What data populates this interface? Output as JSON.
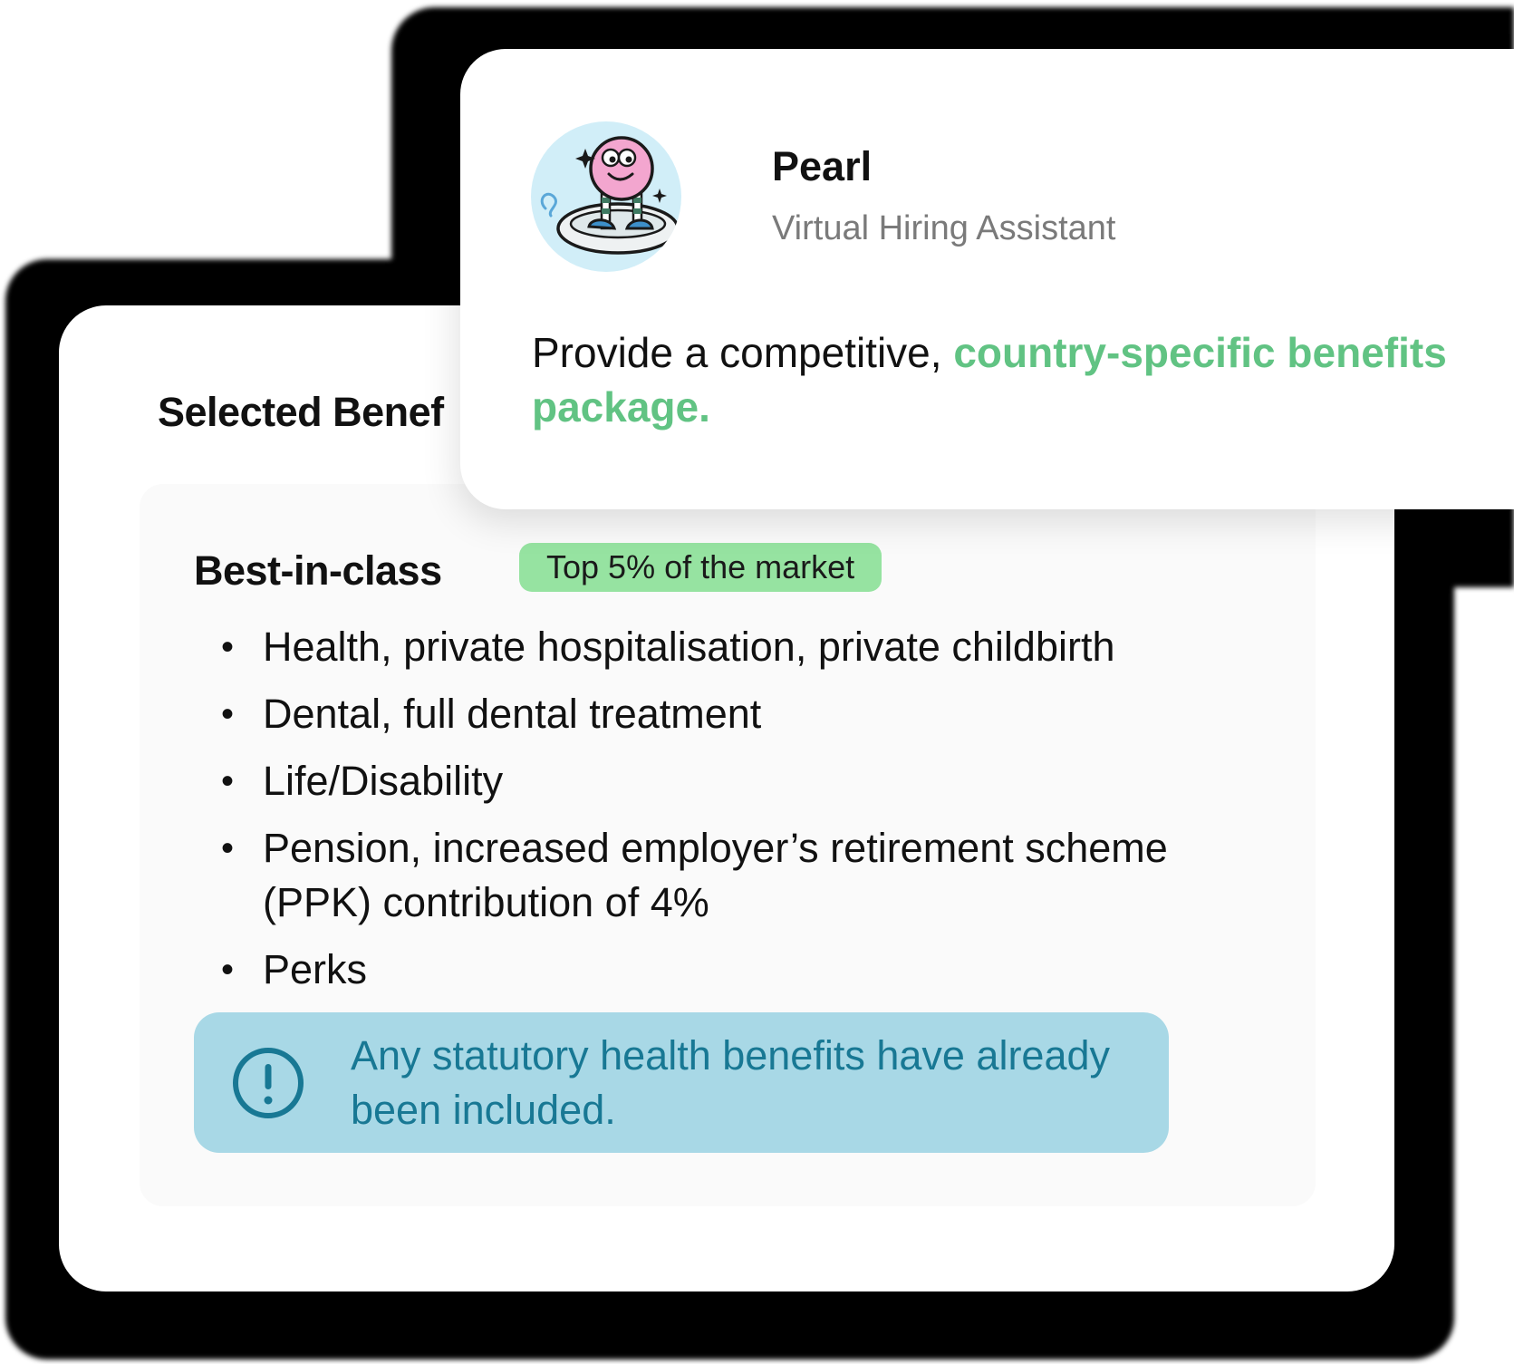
{
  "benefits_card": {
    "title": "Selected Benef",
    "tier": {
      "name": "Best-in-class",
      "badge": "Top 5% of the market"
    },
    "items": [
      {
        "bullet": "•",
        "text": "Health, private hospitalisation, private childbirth"
      },
      {
        "bullet": "•",
        "text": "Dental, full dental treatment"
      },
      {
        "bullet": "•",
        "text": "Life/Disability"
      },
      {
        "bullet": "•",
        "text": "Pension, increased employer’s retirement scheme (PPK) contribution of 4%"
      },
      {
        "bullet": "•",
        "text": "Perks"
      }
    ],
    "notice": {
      "icon": "exclamation-circle-icon",
      "text": "Any statutory health benefits have already been included."
    }
  },
  "assistant_card": {
    "name": "Pearl",
    "role": "Virtual Hiring Assistant",
    "avatar_icon": "pearl-mascot-icon",
    "message_prefix": "Provide a competitive, ",
    "message_highlight": "country-specific benefits package",
    "message_suffix": "."
  },
  "colors": {
    "badge_green": "#96e3a1",
    "highlight_green": "#61c383",
    "notice_blue": "#a8d8e6",
    "notice_text_blue": "#187894",
    "avatar_bg": "#d1eef8"
  }
}
